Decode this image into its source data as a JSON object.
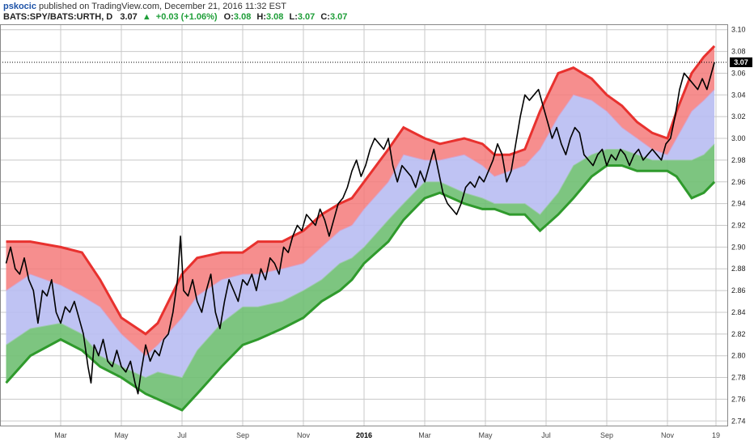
{
  "header": {
    "user": "pskocic",
    "published_text": " published on TradingView.com, December 21, 2016 11:32 EST",
    "symbol": "BATS:SPY/BATS:URTH, D",
    "last": "3.07",
    "change": "+0.03 (+1.06%)",
    "o_label": "O:",
    "o_value": "3.08",
    "h_label": "H:",
    "h_value": "3.08",
    "l_label": "L:",
    "l_value": "3.07",
    "c_label": "C:",
    "c_value": "3.07"
  },
  "colors": {
    "up": "#1e9e38",
    "user": "#1e53a8",
    "upper_fill": "#f47a7a",
    "upper_line": "#e8312e",
    "middle_fill": "#b8bdf2",
    "lower_fill": "#6fbf72",
    "lower_line": "#2f9a2c",
    "price_line": "#000000",
    "grid": "#c8c8c8"
  },
  "chart_data": {
    "type": "line",
    "last_price_label": "3.07",
    "y_range": [
      2.735,
      3.105
    ],
    "y_ticks": [
      "2.74",
      "2.76",
      "2.78",
      "2.80",
      "2.82",
      "2.84",
      "2.86",
      "2.88",
      "2.90",
      "2.92",
      "2.94",
      "2.96",
      "2.98",
      "3.00",
      "3.02",
      "3.04",
      "3.06",
      "3.08",
      "3.10"
    ],
    "x_ticks": [
      {
        "label": "Mar",
        "t": 2.0
      },
      {
        "label": "May",
        "t": 4.0
      },
      {
        "label": "Jul",
        "t": 6.0
      },
      {
        "label": "Sep",
        "t": 8.0
      },
      {
        "label": "Nov",
        "t": 10.0
      },
      {
        "label": "2016",
        "t": 12.0,
        "bold": true
      },
      {
        "label": "Mar",
        "t": 14.0
      },
      {
        "label": "May",
        "t": 16.0
      },
      {
        "label": "Jul",
        "t": 18.0
      },
      {
        "label": "Sep",
        "t": 20.0
      },
      {
        "label": "Nov",
        "t": 22.0
      },
      {
        "label": "19",
        "t": 23.6
      }
    ],
    "upper_band": [
      [
        0.2,
        2.905
      ],
      [
        1,
        2.905
      ],
      [
        2,
        2.9
      ],
      [
        2.7,
        2.895
      ],
      [
        3.3,
        2.87
      ],
      [
        4,
        2.835
      ],
      [
        4.8,
        2.82
      ],
      [
        5.2,
        2.83
      ],
      [
        6,
        2.875
      ],
      [
        6.5,
        2.89
      ],
      [
        7.3,
        2.895
      ],
      [
        8,
        2.895
      ],
      [
        8.5,
        2.905
      ],
      [
        9.3,
        2.905
      ],
      [
        10,
        2.915
      ],
      [
        10.6,
        2.93
      ],
      [
        11.2,
        2.94
      ],
      [
        11.6,
        2.945
      ],
      [
        12,
        2.96
      ],
      [
        12.8,
        2.99
      ],
      [
        13.3,
        3.01
      ],
      [
        14,
        3.0
      ],
      [
        14.5,
        2.995
      ],
      [
        15.3,
        3.0
      ],
      [
        15.9,
        2.995
      ],
      [
        16.3,
        2.985
      ],
      [
        16.8,
        2.985
      ],
      [
        17.3,
        2.99
      ],
      [
        17.8,
        3.025
      ],
      [
        18.4,
        3.06
      ],
      [
        18.9,
        3.065
      ],
      [
        19.5,
        3.055
      ],
      [
        20.0,
        3.04
      ],
      [
        20.5,
        3.03
      ],
      [
        21.0,
        3.015
      ],
      [
        21.5,
        3.005
      ],
      [
        22.0,
        3.0
      ],
      [
        22.3,
        3.025
      ],
      [
        22.8,
        3.06
      ],
      [
        23.2,
        3.075
      ],
      [
        23.55,
        3.085
      ]
    ],
    "middle_upper": [
      [
        0.2,
        2.86
      ],
      [
        1,
        2.875
      ],
      [
        2,
        2.865
      ],
      [
        2.7,
        2.855
      ],
      [
        3.3,
        2.845
      ],
      [
        4,
        2.82
      ],
      [
        4.8,
        2.8
      ],
      [
        5.2,
        2.81
      ],
      [
        6,
        2.835
      ],
      [
        6.5,
        2.855
      ],
      [
        7.3,
        2.87
      ],
      [
        8,
        2.875
      ],
      [
        8.5,
        2.875
      ],
      [
        9.3,
        2.88
      ],
      [
        10,
        2.885
      ],
      [
        10.6,
        2.9
      ],
      [
        11.2,
        2.915
      ],
      [
        11.6,
        2.92
      ],
      [
        12,
        2.935
      ],
      [
        12.8,
        2.96
      ],
      [
        13.3,
        2.985
      ],
      [
        14,
        2.98
      ],
      [
        14.5,
        2.98
      ],
      [
        15.3,
        2.985
      ],
      [
        15.9,
        2.975
      ],
      [
        16.3,
        2.965
      ],
      [
        16.8,
        2.97
      ],
      [
        17.3,
        2.975
      ],
      [
        17.8,
        2.99
      ],
      [
        18.4,
        3.02
      ],
      [
        18.9,
        3.04
      ],
      [
        19.5,
        3.035
      ],
      [
        20.0,
        3.025
      ],
      [
        20.5,
        3.01
      ],
      [
        21.0,
        3.0
      ],
      [
        21.5,
        2.99
      ],
      [
        22.0,
        2.985
      ],
      [
        22.3,
        3.0
      ],
      [
        22.8,
        3.025
      ],
      [
        23.2,
        3.035
      ],
      [
        23.55,
        3.045
      ]
    ],
    "middle_lower": [
      [
        0.2,
        2.81
      ],
      [
        1,
        2.825
      ],
      [
        2,
        2.83
      ],
      [
        2.7,
        2.82
      ],
      [
        3.3,
        2.8
      ],
      [
        4,
        2.79
      ],
      [
        4.8,
        2.78
      ],
      [
        5.2,
        2.785
      ],
      [
        6,
        2.78
      ],
      [
        6.5,
        2.805
      ],
      [
        7.3,
        2.83
      ],
      [
        8,
        2.845
      ],
      [
        8.5,
        2.845
      ],
      [
        9.3,
        2.85
      ],
      [
        10,
        2.86
      ],
      [
        10.6,
        2.87
      ],
      [
        11.2,
        2.885
      ],
      [
        11.6,
        2.89
      ],
      [
        12,
        2.9
      ],
      [
        12.8,
        2.925
      ],
      [
        13.3,
        2.94
      ],
      [
        14,
        2.96
      ],
      [
        14.5,
        2.96
      ],
      [
        15.3,
        2.95
      ],
      [
        15.9,
        2.945
      ],
      [
        16.3,
        2.94
      ],
      [
        16.8,
        2.94
      ],
      [
        17.3,
        2.94
      ],
      [
        17.8,
        2.93
      ],
      [
        18.4,
        2.95
      ],
      [
        18.9,
        2.975
      ],
      [
        19.5,
        2.985
      ],
      [
        20.0,
        2.99
      ],
      [
        20.5,
        2.99
      ],
      [
        21.0,
        2.985
      ],
      [
        21.5,
        2.98
      ],
      [
        22.0,
        2.98
      ],
      [
        22.3,
        2.98
      ],
      [
        22.8,
        2.98
      ],
      [
        23.2,
        2.985
      ],
      [
        23.55,
        2.995
      ]
    ],
    "lower_band": [
      [
        0.2,
        2.775
      ],
      [
        1,
        2.8
      ],
      [
        2,
        2.815
      ],
      [
        2.7,
        2.805
      ],
      [
        3.3,
        2.79
      ],
      [
        4,
        2.78
      ],
      [
        4.8,
        2.765
      ],
      [
        5.2,
        2.76
      ],
      [
        6,
        2.75
      ],
      [
        6.5,
        2.765
      ],
      [
        7.3,
        2.79
      ],
      [
        8,
        2.81
      ],
      [
        8.5,
        2.815
      ],
      [
        9.3,
        2.825
      ],
      [
        10,
        2.835
      ],
      [
        10.6,
        2.85
      ],
      [
        11.2,
        2.86
      ],
      [
        11.6,
        2.87
      ],
      [
        12,
        2.885
      ],
      [
        12.8,
        2.905
      ],
      [
        13.3,
        2.925
      ],
      [
        14,
        2.945
      ],
      [
        14.5,
        2.95
      ],
      [
        15.3,
        2.94
      ],
      [
        15.9,
        2.935
      ],
      [
        16.3,
        2.935
      ],
      [
        16.8,
        2.93
      ],
      [
        17.3,
        2.93
      ],
      [
        17.8,
        2.915
      ],
      [
        18.4,
        2.93
      ],
      [
        18.9,
        2.945
      ],
      [
        19.5,
        2.965
      ],
      [
        20.0,
        2.975
      ],
      [
        20.5,
        2.975
      ],
      [
        21.0,
        2.97
      ],
      [
        21.5,
        2.97
      ],
      [
        22.0,
        2.97
      ],
      [
        22.3,
        2.965
      ],
      [
        22.8,
        2.945
      ],
      [
        23.2,
        2.95
      ],
      [
        23.55,
        2.96
      ]
    ],
    "price": [
      [
        0.2,
        2.885
      ],
      [
        0.35,
        2.9
      ],
      [
        0.5,
        2.88
      ],
      [
        0.65,
        2.875
      ],
      [
        0.8,
        2.89
      ],
      [
        0.95,
        2.87
      ],
      [
        1.1,
        2.86
      ],
      [
        1.25,
        2.83
      ],
      [
        1.4,
        2.86
      ],
      [
        1.55,
        2.855
      ],
      [
        1.7,
        2.87
      ],
      [
        1.85,
        2.84
      ],
      [
        2.0,
        2.83
      ],
      [
        2.15,
        2.845
      ],
      [
        2.3,
        2.84
      ],
      [
        2.45,
        2.85
      ],
      [
        2.6,
        2.835
      ],
      [
        2.75,
        2.82
      ],
      [
        2.9,
        2.79
      ],
      [
        3.0,
        2.775
      ],
      [
        3.1,
        2.81
      ],
      [
        3.25,
        2.8
      ],
      [
        3.4,
        2.815
      ],
      [
        3.55,
        2.795
      ],
      [
        3.7,
        2.79
      ],
      [
        3.85,
        2.805
      ],
      [
        4.0,
        2.79
      ],
      [
        4.15,
        2.785
      ],
      [
        4.3,
        2.795
      ],
      [
        4.45,
        2.775
      ],
      [
        4.55,
        2.765
      ],
      [
        4.65,
        2.785
      ],
      [
        4.8,
        2.81
      ],
      [
        4.95,
        2.795
      ],
      [
        5.1,
        2.805
      ],
      [
        5.25,
        2.8
      ],
      [
        5.4,
        2.815
      ],
      [
        5.55,
        2.82
      ],
      [
        5.7,
        2.84
      ],
      [
        5.85,
        2.87
      ],
      [
        5.95,
        2.91
      ],
      [
        6.05,
        2.86
      ],
      [
        6.2,
        2.855
      ],
      [
        6.35,
        2.87
      ],
      [
        6.5,
        2.85
      ],
      [
        6.65,
        2.84
      ],
      [
        6.8,
        2.86
      ],
      [
        6.95,
        2.875
      ],
      [
        7.1,
        2.84
      ],
      [
        7.25,
        2.825
      ],
      [
        7.4,
        2.85
      ],
      [
        7.55,
        2.87
      ],
      [
        7.7,
        2.86
      ],
      [
        7.85,
        2.85
      ],
      [
        8.0,
        2.87
      ],
      [
        8.15,
        2.865
      ],
      [
        8.3,
        2.875
      ],
      [
        8.45,
        2.86
      ],
      [
        8.6,
        2.88
      ],
      [
        8.75,
        2.87
      ],
      [
        8.9,
        2.89
      ],
      [
        9.05,
        2.885
      ],
      [
        9.2,
        2.875
      ],
      [
        9.35,
        2.9
      ],
      [
        9.5,
        2.895
      ],
      [
        9.65,
        2.91
      ],
      [
        9.8,
        2.92
      ],
      [
        9.95,
        2.915
      ],
      [
        10.1,
        2.93
      ],
      [
        10.25,
        2.925
      ],
      [
        10.4,
        2.92
      ],
      [
        10.55,
        2.935
      ],
      [
        10.7,
        2.925
      ],
      [
        10.85,
        2.91
      ],
      [
        11.0,
        2.925
      ],
      [
        11.15,
        2.94
      ],
      [
        11.3,
        2.945
      ],
      [
        11.45,
        2.955
      ],
      [
        11.6,
        2.97
      ],
      [
        11.75,
        2.98
      ],
      [
        11.9,
        2.965
      ],
      [
        12.05,
        2.975
      ],
      [
        12.2,
        2.99
      ],
      [
        12.35,
        3.0
      ],
      [
        12.5,
        2.995
      ],
      [
        12.65,
        2.99
      ],
      [
        12.8,
        3.0
      ],
      [
        12.95,
        2.975
      ],
      [
        13.1,
        2.96
      ],
      [
        13.25,
        2.975
      ],
      [
        13.4,
        2.97
      ],
      [
        13.55,
        2.965
      ],
      [
        13.7,
        2.955
      ],
      [
        13.85,
        2.97
      ],
      [
        14.0,
        2.96
      ],
      [
        14.15,
        2.975
      ],
      [
        14.3,
        2.99
      ],
      [
        14.45,
        2.97
      ],
      [
        14.6,
        2.95
      ],
      [
        14.75,
        2.94
      ],
      [
        14.9,
        2.935
      ],
      [
        15.05,
        2.93
      ],
      [
        15.2,
        2.94
      ],
      [
        15.35,
        2.955
      ],
      [
        15.5,
        2.96
      ],
      [
        15.65,
        2.955
      ],
      [
        15.8,
        2.965
      ],
      [
        15.95,
        2.96
      ],
      [
        16.1,
        2.97
      ],
      [
        16.25,
        2.98
      ],
      [
        16.4,
        2.995
      ],
      [
        16.55,
        2.985
      ],
      [
        16.7,
        2.96
      ],
      [
        16.85,
        2.97
      ],
      [
        17.0,
        2.995
      ],
      [
        17.15,
        3.02
      ],
      [
        17.3,
        3.04
      ],
      [
        17.45,
        3.035
      ],
      [
        17.6,
        3.04
      ],
      [
        17.75,
        3.045
      ],
      [
        17.9,
        3.03
      ],
      [
        18.05,
        3.015
      ],
      [
        18.2,
        3.0
      ],
      [
        18.35,
        3.01
      ],
      [
        18.5,
        2.995
      ],
      [
        18.65,
        2.985
      ],
      [
        18.8,
        3.0
      ],
      [
        18.95,
        3.01
      ],
      [
        19.1,
        3.005
      ],
      [
        19.25,
        2.985
      ],
      [
        19.4,
        2.98
      ],
      [
        19.55,
        2.975
      ],
      [
        19.7,
        2.985
      ],
      [
        19.85,
        2.99
      ],
      [
        20.0,
        2.975
      ],
      [
        20.15,
        2.985
      ],
      [
        20.3,
        2.98
      ],
      [
        20.45,
        2.99
      ],
      [
        20.6,
        2.985
      ],
      [
        20.75,
        2.975
      ],
      [
        20.9,
        2.985
      ],
      [
        21.05,
        2.99
      ],
      [
        21.2,
        2.98
      ],
      [
        21.35,
        2.985
      ],
      [
        21.5,
        2.99
      ],
      [
        21.65,
        2.985
      ],
      [
        21.8,
        2.98
      ],
      [
        21.95,
        2.995
      ],
      [
        22.1,
        3.0
      ],
      [
        22.25,
        3.02
      ],
      [
        22.4,
        3.045
      ],
      [
        22.55,
        3.06
      ],
      [
        22.7,
        3.055
      ],
      [
        22.85,
        3.05
      ],
      [
        23.0,
        3.045
      ],
      [
        23.15,
        3.055
      ],
      [
        23.3,
        3.045
      ],
      [
        23.45,
        3.06
      ],
      [
        23.55,
        3.07
      ]
    ]
  }
}
